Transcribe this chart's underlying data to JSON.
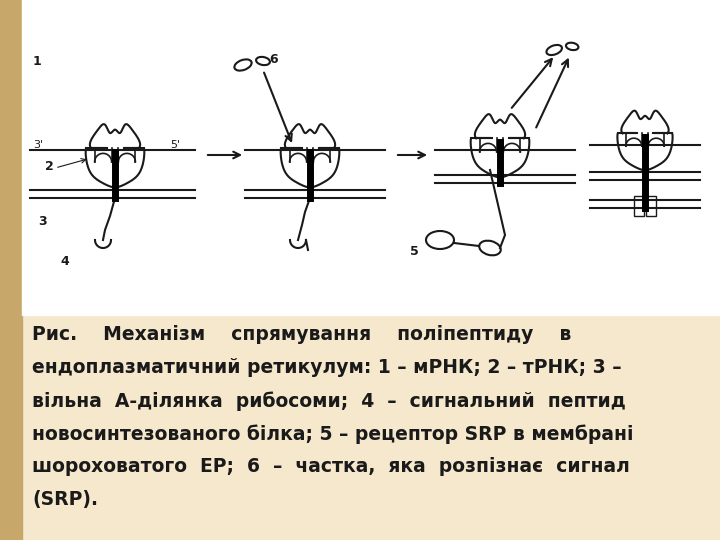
{
  "background_color": "#f5e8cc",
  "left_strip_color": "#c8a86a",
  "text_color": "#1a1a1a",
  "font_size": 13.5,
  "fig_width": 7.2,
  "fig_height": 5.4,
  "diagram_bg": "#ffffff",
  "lc": "#1a1a1a",
  "caption_lines": [
    "Рис.    Механізм    спрямування    поліпептиду    в",
    "ендоплазматичний ретикулум: 1 – мРНК; 2 – тРНК; 3 –",
    "вільна  А-ділянка  рибосоми;  4  –  сигнальний  пептид",
    "новосинтезованого білка; 5 – рецептор |SRP| в мембрані",
    "шороховатого  ЕР;  6  –  частка,  яка  розпізнає  сигнал",
    "(SRP)."
  ]
}
